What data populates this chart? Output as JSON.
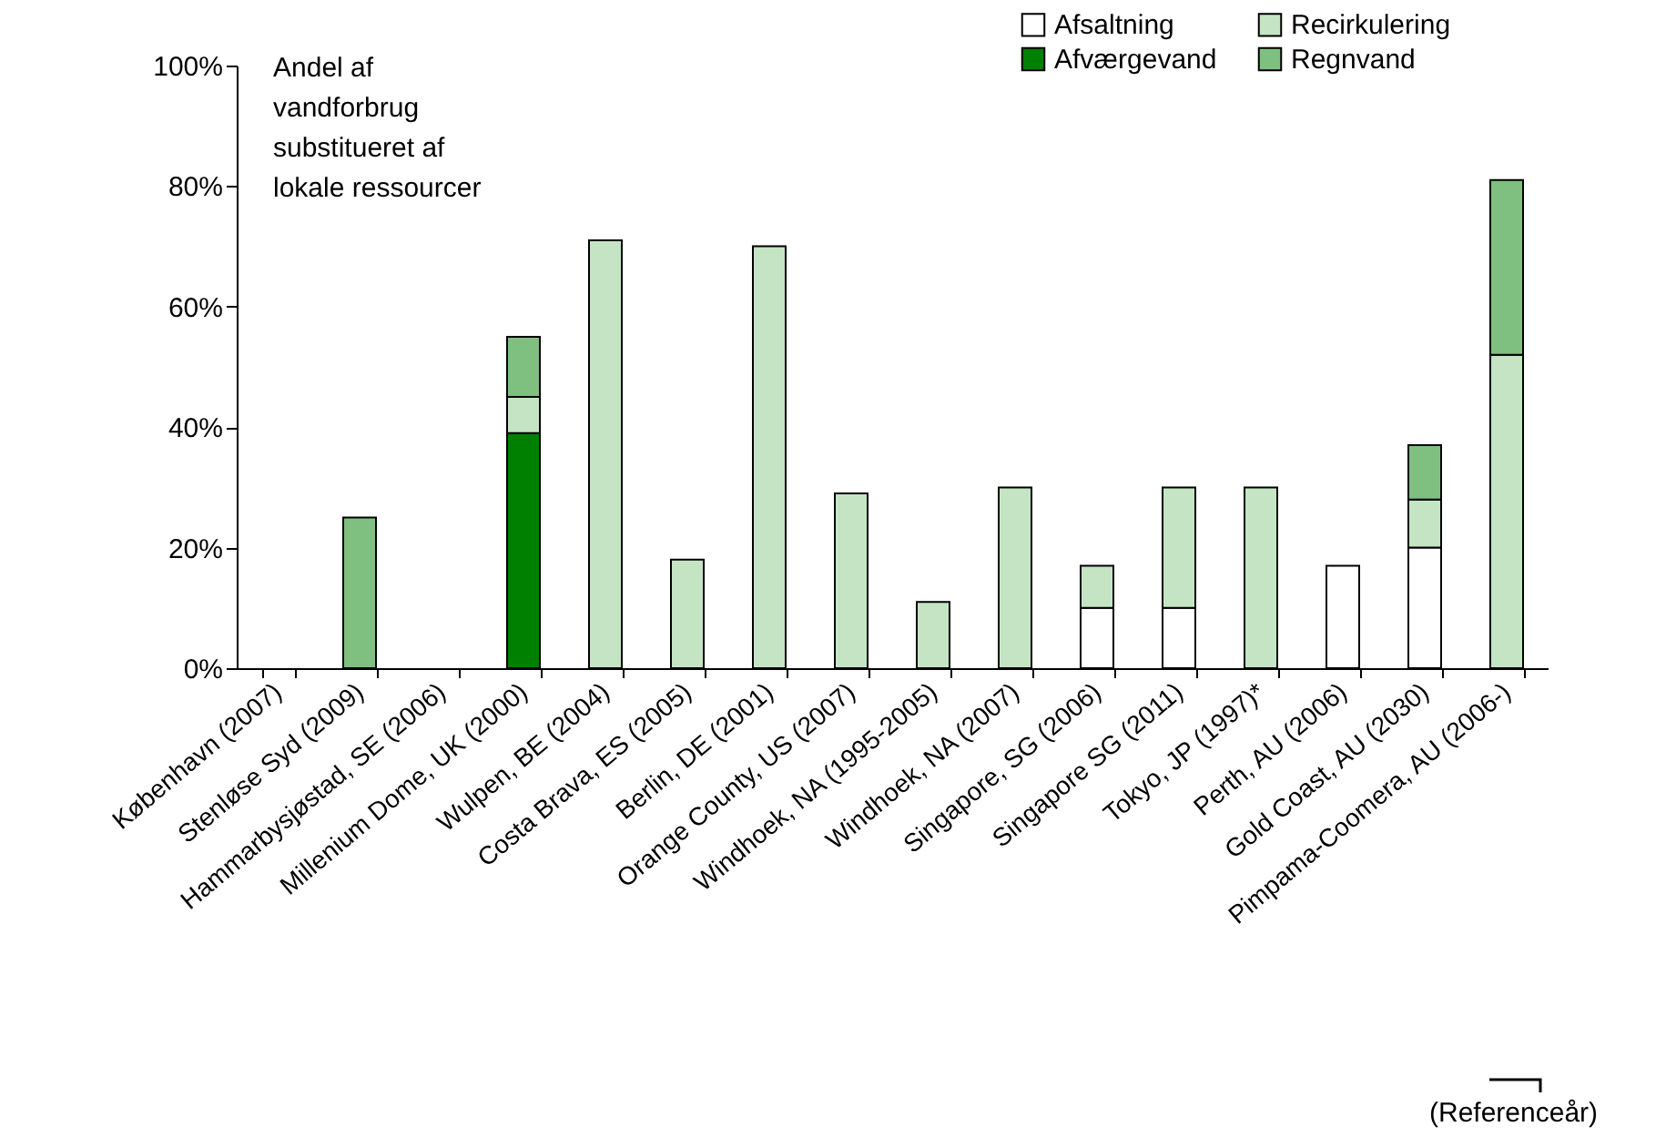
{
  "chart_data": {
    "type": "bar",
    "stacked": true,
    "categories": [
      "København (2007)",
      "Stenløse Syd (2009)",
      "Hammarbysjøstad, SE (2006)",
      "Millenium Dome, UK (2000)",
      "Wulpen, BE (2004)",
      "Costa Brava, ES (2005)",
      "Berlin, DE (2001)",
      "Orange County, US (2007)",
      "Windhoek, NA (1995-2005)",
      "Windhoek, NA (2007)",
      "Singapore, SG (2006)",
      "Singapore SG (2011)",
      "Tokyo, JP (1997)*",
      "Perth, AU (2006)",
      "Gold Coast, AU (2030)",
      "Pimpama-Coomera, AU (2006-)"
    ],
    "series": [
      {
        "name": "Afsaltning",
        "color": "#ffffff",
        "values": [
          null,
          null,
          null,
          null,
          null,
          null,
          null,
          null,
          null,
          null,
          10,
          10,
          null,
          17,
          20,
          null
        ]
      },
      {
        "name": "Afværgevand",
        "color": "#008000",
        "values": [
          null,
          null,
          null,
          39,
          null,
          null,
          null,
          null,
          null,
          null,
          null,
          null,
          null,
          null,
          null,
          null
        ]
      },
      {
        "name": "Recirkulering",
        "color": "#c4e4c4",
        "values": [
          null,
          null,
          null,
          6,
          71,
          18,
          70,
          29,
          11,
          30,
          7,
          20,
          30,
          null,
          8,
          52
        ]
      },
      {
        "name": "Regnvand",
        "color": "#7fbf7f",
        "values": [
          null,
          25,
          null,
          10,
          null,
          null,
          null,
          null,
          null,
          null,
          null,
          null,
          null,
          null,
          9,
          29
        ]
      }
    ],
    "ylim": [
      0,
      100
    ],
    "yticks": [
      {
        "value": 0,
        "label": "0%"
      },
      {
        "value": 20,
        "label": "20%"
      },
      {
        "value": 40,
        "label": "40%"
      },
      {
        "value": 60,
        "label": "60%"
      },
      {
        "value": 80,
        "label": "80%"
      },
      {
        "value": 100,
        "label": "100%"
      }
    ],
    "legend": "top right",
    "annotations": [
      "Andel af\nvandforbrug\nsubstitueret af\nlokale ressourcer",
      "(Referenceår)"
    ]
  }
}
